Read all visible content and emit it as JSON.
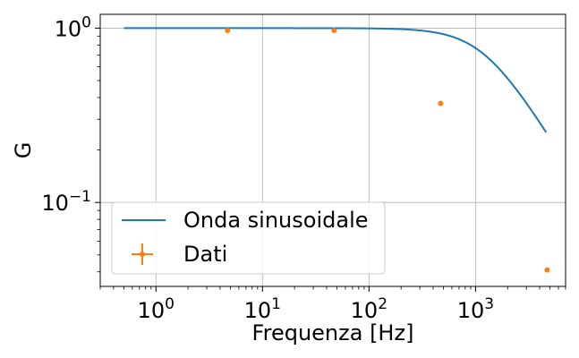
{
  "chart_data": {
    "type": "line",
    "title": "",
    "xlabel": "Frequenza [Hz]",
    "ylabel": "G",
    "xscale": "log",
    "yscale": "log",
    "xlim": [
      0.3,
      7000
    ],
    "ylim": [
      0.033,
      1.2
    ],
    "grid": true,
    "legend_position": "lower-left",
    "x_ticks": [
      {
        "value": 1,
        "base": "10",
        "exp": "0"
      },
      {
        "value": 10,
        "base": "10",
        "exp": "1"
      },
      {
        "value": 100,
        "base": "10",
        "exp": "2"
      },
      {
        "value": 1000,
        "base": "10",
        "exp": "3"
      }
    ],
    "y_ticks": [
      {
        "value": 1,
        "base": "10",
        "exp": "0"
      },
      {
        "value": 0.1,
        "base": "10",
        "exp": "−1"
      }
    ],
    "series": [
      {
        "name": "Onda sinusoidale",
        "kind": "line",
        "color": "#1f77b4",
        "model": "lowpass",
        "cutoff_hz": 1200,
        "x_range": [
          0.5,
          4600
        ]
      },
      {
        "name": "Dati",
        "kind": "errorbar",
        "color": "#ff7f0e",
        "points": [
          {
            "x": 4.7,
            "y": 0.97
          },
          {
            "x": 47,
            "y": 0.97
          },
          {
            "x": 470,
            "y": 0.37
          },
          {
            "x": 4700,
            "y": 0.041
          }
        ]
      }
    ]
  }
}
